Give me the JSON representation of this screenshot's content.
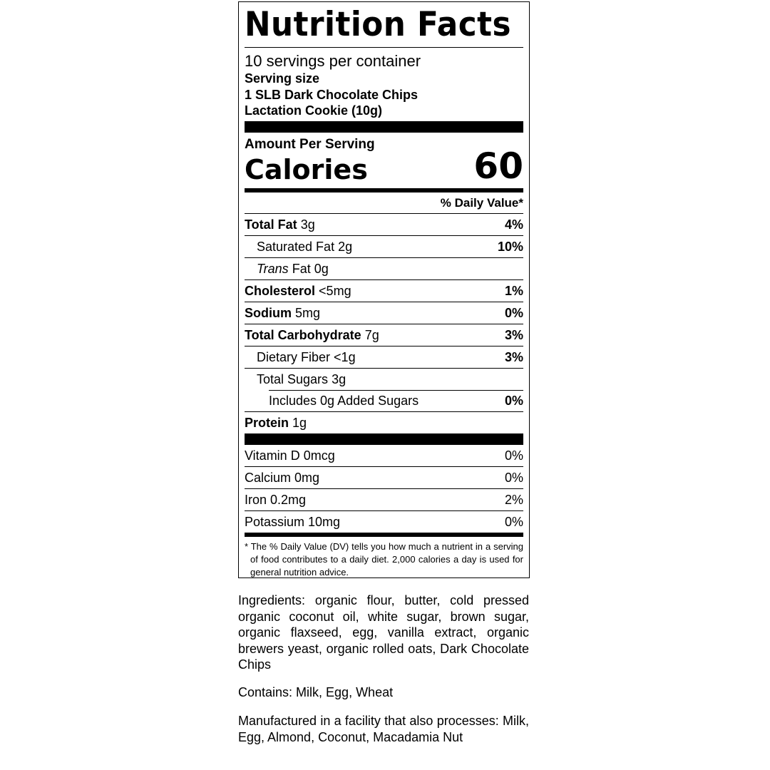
{
  "label": {
    "title": "Nutrition Facts",
    "servings": "10 servings per container",
    "serving_size_label": "Serving size",
    "serving_size_lines": [
      "1 SLB Dark Chocolate Chips",
      "Lactation Cookie (10g)"
    ],
    "amount_per_serving": "Amount Per Serving",
    "calories_label": "Calories",
    "calories_value": "60",
    "daily_value_header": "% Daily Value*",
    "nutrients": [
      {
        "name": "Total Fat",
        "amount": "3g",
        "dv": "4%"
      },
      {
        "name": "Saturated Fat",
        "amount": "2g",
        "dv": "10%"
      },
      {
        "name": "Trans",
        "suffix": "Fat",
        "amount": "0g",
        "dv": ""
      },
      {
        "name": "Cholesterol",
        "amount": "<5mg",
        "dv": "1%"
      },
      {
        "name": "Sodium",
        "amount": "5mg",
        "dv": "0%"
      },
      {
        "name": "Total Carbohydrate",
        "amount": "7g",
        "dv": "3%"
      },
      {
        "name": "Dietary Fiber",
        "amount": "<1g",
        "dv": "3%"
      },
      {
        "name": "Total Sugars",
        "amount": "3g",
        "dv": ""
      },
      {
        "name": "Includes 0g Added Sugars",
        "amount": "",
        "dv": "0%"
      },
      {
        "name": "Protein",
        "amount": "1g",
        "dv": ""
      }
    ],
    "vitamins": [
      {
        "name": "Vitamin D 0mcg",
        "dv": "0%"
      },
      {
        "name": "Calcium 0mg",
        "dv": "0%"
      },
      {
        "name": "Iron 0.2mg",
        "dv": "2%"
      },
      {
        "name": "Potassium 10mg",
        "dv": "0%"
      }
    ],
    "footnote": "* The % Daily Value (DV) tells you how much a nutrient in a serving of food contributes to a daily diet. 2,000 calories a day is used for general nutrition advice."
  },
  "ingredients": "Ingredients: organic flour, butter, cold pressed organic coconut oil, white sugar, brown sugar, organic flaxseed, egg, vanilla extract, organic brewers yeast, organic rolled oats, Dark Chocolate Chips",
  "contains": "Contains: Milk, Egg, Wheat",
  "facility": "Manufactured in a facility that also processes: Milk, Egg, Almond, Coconut, Macadamia Nut"
}
